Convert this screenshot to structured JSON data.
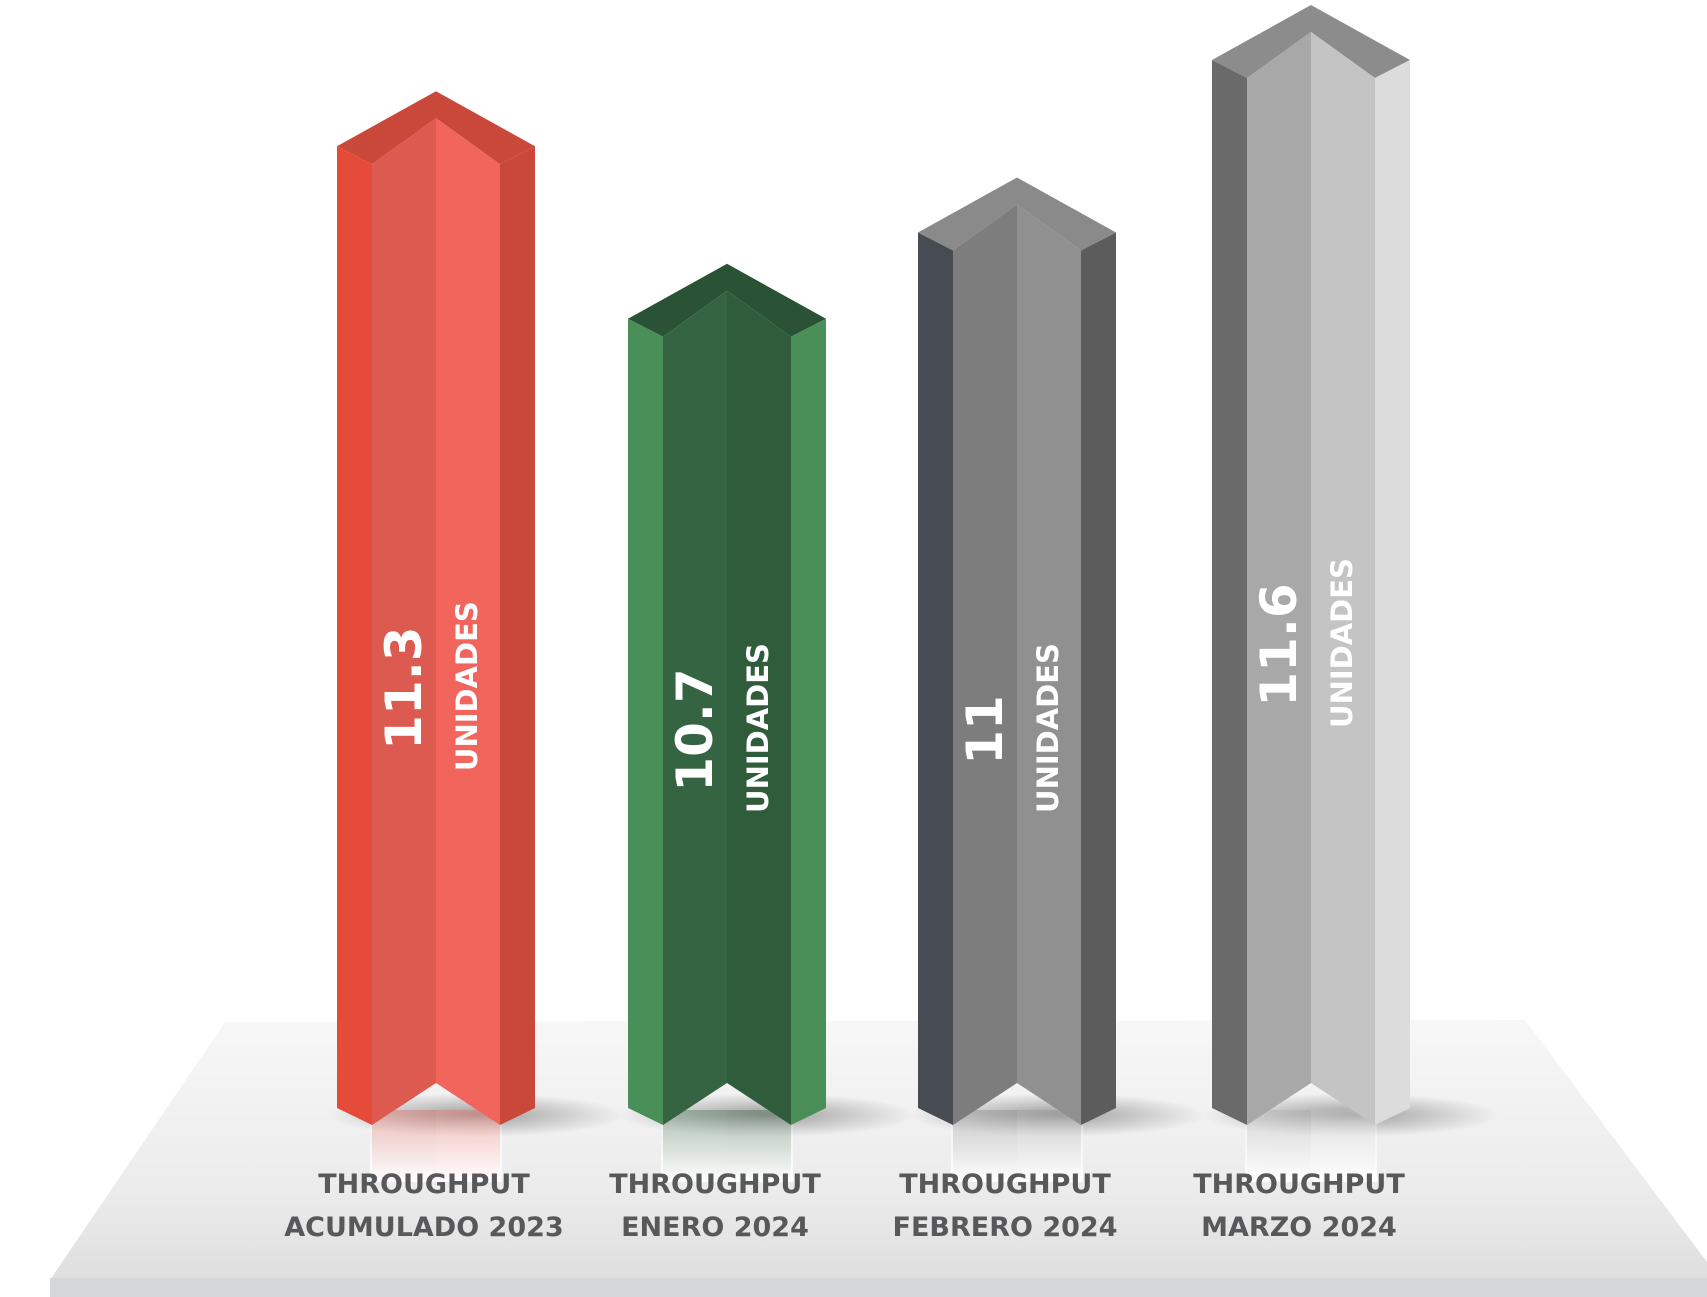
{
  "chart_data": {
    "type": "bar",
    "categories": [
      [
        "THROUGHPUT",
        "ACUMULADO 2023"
      ],
      [
        "THROUGHPUT",
        "ENERO 2024"
      ],
      [
        "THROUGHPUT",
        "FEBRERO 2024"
      ],
      [
        "THROUGHPUT",
        "MARZO 2024"
      ]
    ],
    "values": [
      11.3,
      10.7,
      11,
      11.6
    ],
    "value_labels": [
      "11.3",
      "10.7",
      "11",
      "11.6"
    ],
    "unit": "UNIDADES",
    "bar_colors": [
      {
        "left": "#e54b38",
        "mid": "#dc5a50",
        "right": "#f2655c",
        "edge": "#c9483a",
        "top": "#c9483a",
        "topInner": "#b23f33"
      },
      {
        "left": "#4a8f58",
        "mid": "#346441",
        "right": "#2f5c3b",
        "edge": "#4a8f58",
        "top": "#2a5335",
        "topInner": "#244a2e"
      },
      {
        "left": "#474c52",
        "mid": "#7d7d7d",
        "right": "#909090",
        "edge": "#5c5c5c",
        "top": "#8a8a8a",
        "topInner": "#777777"
      },
      {
        "left": "#6a6a6a",
        "mid": "#a8a8a8",
        "right": "#c4c4c4",
        "edge": "#dcdcdc",
        "top": "#8c8c8c",
        "topInner": "#7a7a7a"
      }
    ],
    "label_color": "#58585a",
    "floor_color": "#efefef",
    "grid": false,
    "legend": "none"
  }
}
